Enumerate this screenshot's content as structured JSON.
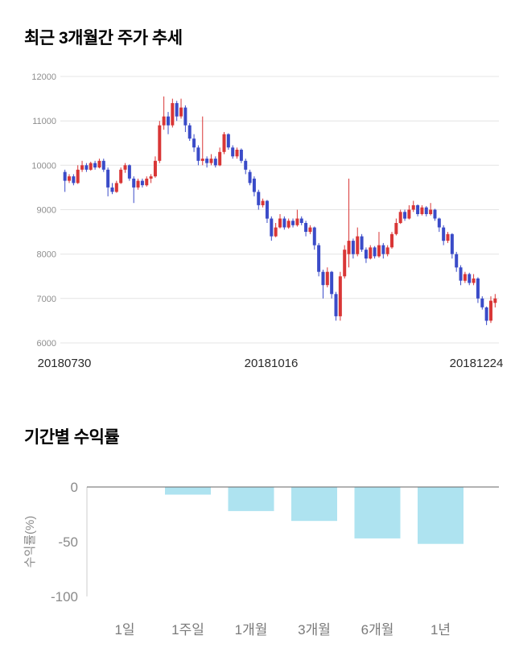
{
  "chart_data": [
    {
      "type": "candlestick",
      "title": "최근 3개월간 주가 추세",
      "x_axis_labels": [
        "20180730",
        "20181016",
        "20181224"
      ],
      "ylim": [
        6000,
        12000
      ],
      "yticks": [
        6000,
        7000,
        8000,
        9000,
        10000,
        11000,
        12000
      ],
      "grid": true,
      "up_color": "#d93636",
      "down_color": "#3a4bc8",
      "ohlc": [
        [
          9850,
          9900,
          9400,
          9650
        ],
        [
          9650,
          9800,
          9600,
          9750
        ],
        [
          9750,
          9800,
          9550,
          9600
        ],
        [
          9600,
          10000,
          9580,
          9900
        ],
        [
          9900,
          10100,
          9850,
          10000
        ],
        [
          10000,
          10050,
          9850,
          9900
        ],
        [
          9900,
          10080,
          9880,
          10050
        ],
        [
          10050,
          10100,
          9900,
          9950
        ],
        [
          9950,
          10150,
          9930,
          10100
        ],
        [
          10100,
          10150,
          9850,
          9900
        ],
        [
          9900,
          9950,
          9300,
          9500
        ],
        [
          9500,
          9600,
          9350,
          9400
        ],
        [
          9400,
          9650,
          9380,
          9600
        ],
        [
          9600,
          9950,
          9580,
          9900
        ],
        [
          9900,
          10050,
          9830,
          10000
        ],
        [
          10000,
          10020,
          9650,
          9700
        ],
        [
          9700,
          9750,
          9150,
          9500
        ],
        [
          9500,
          9700,
          9450,
          9650
        ],
        [
          9650,
          9700,
          9500,
          9550
        ],
        [
          9550,
          9750,
          9520,
          9700
        ],
        [
          9700,
          9800,
          9600,
          9750
        ],
        [
          9750,
          10200,
          9720,
          10100
        ],
        [
          10100,
          11000,
          10050,
          10900
        ],
        [
          10900,
          11550,
          10800,
          11100
        ],
        [
          11100,
          11200,
          10700,
          10900
        ],
        [
          10900,
          11500,
          10850,
          11400
        ],
        [
          11400,
          11450,
          11000,
          11100
        ],
        [
          11100,
          11500,
          11050,
          11300
        ],
        [
          11300,
          11350,
          10750,
          10900
        ],
        [
          10900,
          10950,
          10550,
          10600
        ],
        [
          10600,
          10700,
          10300,
          10400
        ],
        [
          10400,
          10450,
          10000,
          10100
        ],
        [
          10100,
          11100,
          10000,
          10150
        ],
        [
          10150,
          10200,
          9950,
          10050
        ],
        [
          10050,
          10250,
          10000,
          10150
        ],
        [
          10150,
          10200,
          9950,
          10000
        ],
        [
          10000,
          10400,
          9980,
          10300
        ],
        [
          10300,
          10750,
          10250,
          10700
        ],
        [
          10700,
          10720,
          10350,
          10400
        ],
        [
          10400,
          10450,
          10150,
          10200
        ],
        [
          10200,
          10400,
          10150,
          10350
        ],
        [
          10350,
          10380,
          10050,
          10100
        ],
        [
          10100,
          10150,
          9800,
          9900
        ],
        [
          9850,
          9900,
          9550,
          9600
        ],
        [
          9700,
          9750,
          9300,
          9400
        ],
        [
          9400,
          9450,
          9000,
          9100
        ],
        [
          9100,
          9250,
          9050,
          9200
        ],
        [
          9200,
          9220,
          8700,
          8800
        ],
        [
          8800,
          8850,
          8300,
          8400
        ],
        [
          8400,
          8700,
          8380,
          8600
        ],
        [
          8600,
          8900,
          8580,
          8800
        ],
        [
          8800,
          8850,
          8550,
          8600
        ],
        [
          8600,
          8800,
          8570,
          8750
        ],
        [
          8750,
          8800,
          8600,
          8650
        ],
        [
          8650,
          9000,
          8620,
          8800
        ],
        [
          8800,
          8850,
          8650,
          8700
        ],
        [
          8700,
          8750,
          8400,
          8500
        ],
        [
          8500,
          8650,
          8450,
          8600
        ],
        [
          8600,
          8620,
          8100,
          8200
        ],
        [
          8200,
          8250,
          7500,
          7600
        ],
        [
          7600,
          7650,
          7000,
          7300
        ],
        [
          7300,
          7700,
          7250,
          7600
        ],
        [
          7600,
          7620,
          7000,
          7100
        ],
        [
          7100,
          7150,
          6500,
          6600
        ],
        [
          6600,
          7600,
          6500,
          7500
        ],
        [
          7500,
          8200,
          7450,
          8100
        ],
        [
          8000,
          9700,
          7700,
          8300
        ],
        [
          8300,
          8350,
          7900,
          8000
        ],
        [
          8000,
          8600,
          7950,
          8400
        ],
        [
          8400,
          8450,
          8050,
          8100
        ],
        [
          8100,
          8150,
          7800,
          7900
        ],
        [
          7900,
          8200,
          7880,
          8150
        ],
        [
          8150,
          8180,
          7900,
          7950
        ],
        [
          7950,
          8500,
          7920,
          8200
        ],
        [
          8200,
          8250,
          7900,
          8000
        ],
        [
          8000,
          8200,
          7950,
          8150
        ],
        [
          8150,
          8500,
          8120,
          8450
        ],
        [
          8450,
          8800,
          8420,
          8700
        ],
        [
          8700,
          9000,
          8680,
          8950
        ],
        [
          8950,
          9000,
          8750,
          8800
        ],
        [
          8800,
          9100,
          8780,
          9000
        ],
        [
          9000,
          9200,
          8950,
          9100
        ],
        [
          9100,
          9120,
          8850,
          8900
        ],
        [
          8900,
          9100,
          8870,
          9050
        ],
        [
          9050,
          9080,
          8850,
          8900
        ],
        [
          8900,
          9150,
          8870,
          9000
        ],
        [
          9000,
          9020,
          8750,
          8800
        ],
        [
          8800,
          8820,
          8500,
          8600
        ],
        [
          8600,
          8650,
          8200,
          8300
        ],
        [
          8300,
          8500,
          8250,
          8450
        ],
        [
          8450,
          8470,
          7900,
          8000
        ],
        [
          8000,
          8050,
          7600,
          7700
        ],
        [
          7700,
          7750,
          7300,
          7400
        ],
        [
          7400,
          7600,
          7350,
          7550
        ],
        [
          7550,
          7580,
          7300,
          7350
        ],
        [
          7350,
          7550,
          7300,
          7450
        ],
        [
          7450,
          7480,
          6900,
          7000
        ],
        [
          7000,
          7050,
          6750,
          6800
        ],
        [
          6800,
          6820,
          6400,
          6500
        ],
        [
          6500,
          7050,
          6450,
          6950
        ],
        [
          6900,
          7100,
          6800,
          7000
        ]
      ]
    },
    {
      "type": "bar",
      "title": "기간별 수익률",
      "ylabel": "수익률(%)",
      "categories": [
        "1일",
        "1주일",
        "1개월",
        "3개월",
        "6개월",
        "1년"
      ],
      "values": [
        0,
        -7,
        -22,
        -31,
        -47,
        -52
      ],
      "ylim": [
        -100,
        0
      ],
      "yticks": [
        0,
        -50,
        -100
      ],
      "grid": false,
      "legend": "none",
      "bar_color": "#aee3f0",
      "axis_color": "#cccccc",
      "zero_line_color": "#666666"
    }
  ]
}
